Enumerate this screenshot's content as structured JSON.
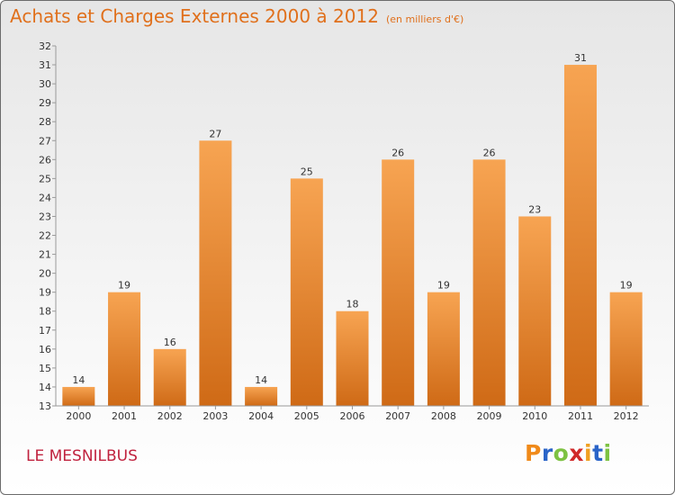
{
  "title": "Achats et Charges Externes 2000 à 2012",
  "unit": "(en milliers d'€)",
  "place": "LE MESNILBUS",
  "logo": {
    "letters": [
      "P",
      "r",
      "o",
      "x",
      "i",
      "t",
      "i"
    ],
    "colors": [
      "#f08a1a",
      "#2a64c8",
      "#7dc242",
      "#d02828",
      "#f0a020",
      "#2a64c8",
      "#7dc242"
    ]
  },
  "colors": {
    "bar_top": "#f7a452",
    "bar_bottom": "#cf6a16",
    "title": "#e0701c",
    "place": "#c0223e",
    "axis": "#9a9a9a"
  },
  "chart_data": {
    "type": "bar",
    "categories": [
      "2000",
      "2001",
      "2002",
      "2003",
      "2004",
      "2005",
      "2006",
      "2007",
      "2008",
      "2009",
      "2010",
      "2011",
      "2012"
    ],
    "values": [
      14,
      19,
      16,
      27,
      14,
      25,
      18,
      26,
      19,
      26,
      23,
      31,
      19
    ],
    "title": "Achats et Charges Externes 2000 à 2012",
    "xlabel": "",
    "ylabel": "",
    "ylim": [
      13,
      32
    ],
    "yticks": [
      13,
      14,
      15,
      16,
      17,
      18,
      19,
      20,
      21,
      22,
      23,
      24,
      25,
      26,
      27,
      28,
      29,
      30,
      31,
      32
    ],
    "grid": false,
    "legend": "none"
  }
}
